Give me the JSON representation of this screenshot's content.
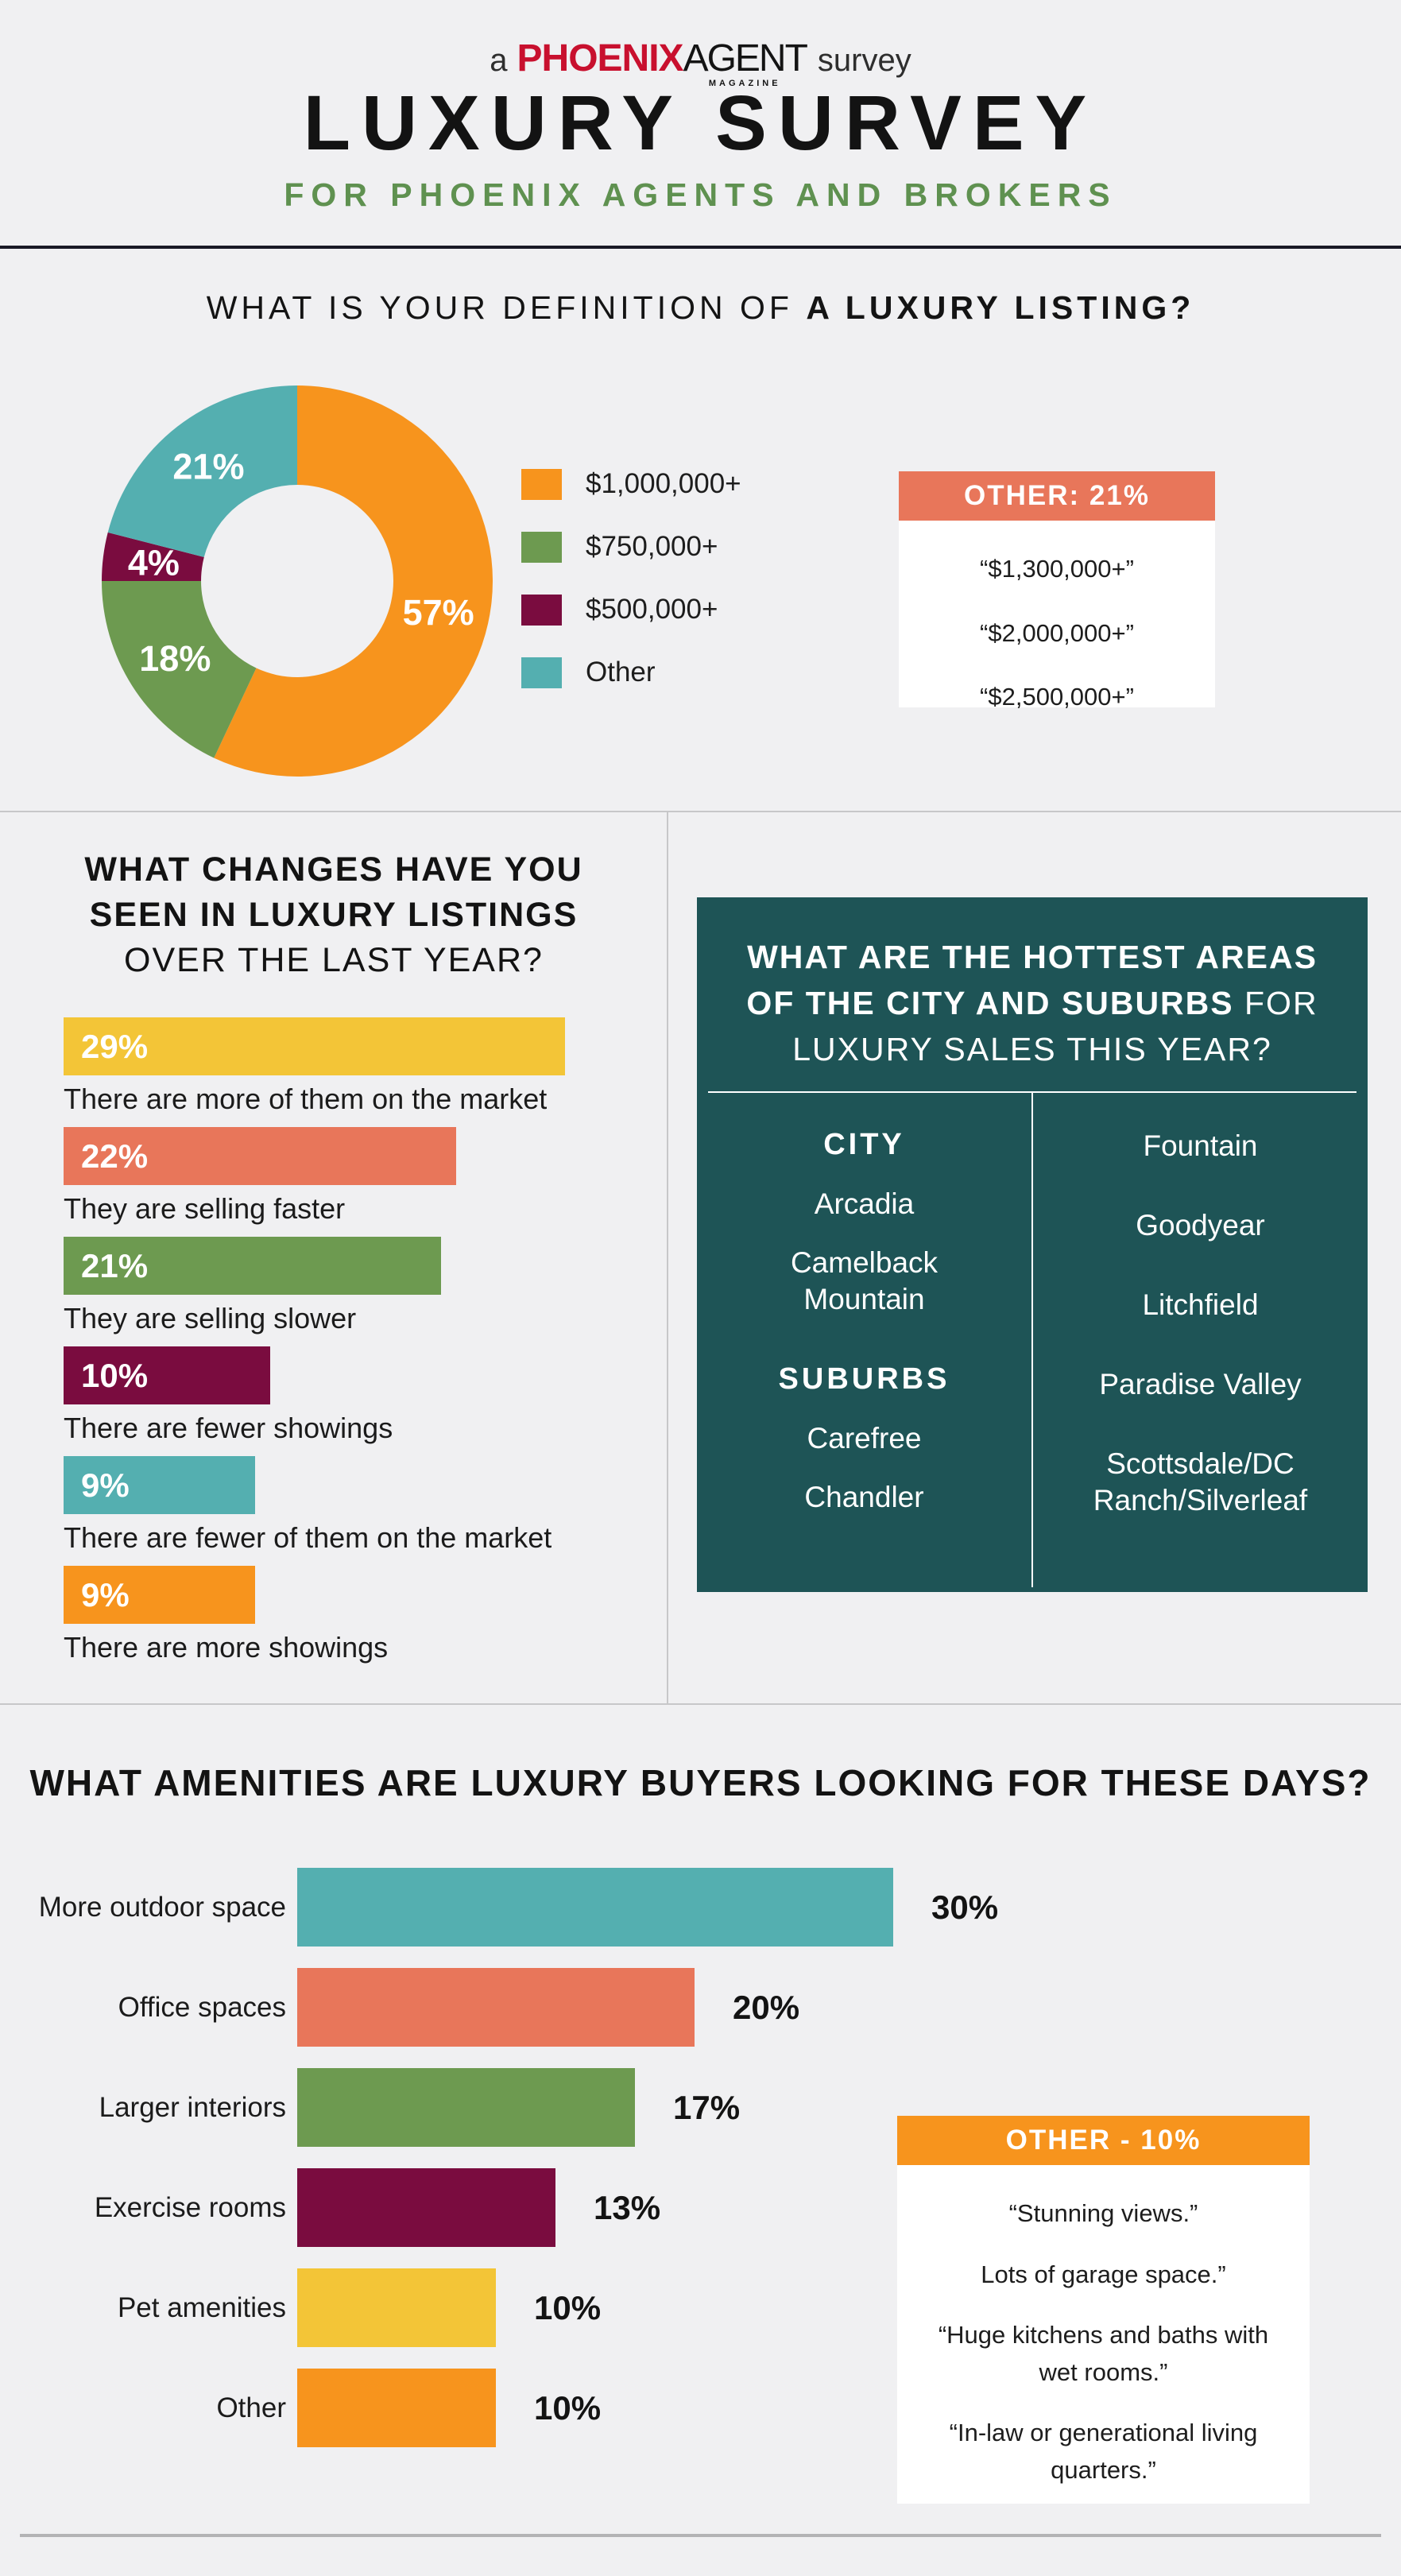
{
  "palette": {
    "orange": "#F7941D",
    "yellow": "#F3C537",
    "salmon": "#E8765A",
    "green": "#6D9A50",
    "maroon": "#7A0C3F",
    "teal": "#54AFB0",
    "dark_teal": "#1E5456",
    "brand_red": "#C8102E",
    "subtitle_green": "#5F9150",
    "background": "#F0F0F2"
  },
  "header": {
    "pretitle": {
      "a": "a",
      "phoenix": "PHOENIX",
      "agent": "AGENT",
      "magazine": "MAGAZINE",
      "survey": "survey"
    },
    "title": "LUXURY SURVEY",
    "subtitle": "FOR PHOENIX AGENTS AND BROKERS"
  },
  "definition_section": {
    "heading_regular": "WHAT IS YOUR DEFINITION OF ",
    "heading_bold": "A LUXURY LISTING?",
    "other_box": {
      "title": "OTHER: 21%",
      "quotes": [
        "“$1,300,000+”",
        "“$2,000,000+”",
        "“$2,500,000+”"
      ]
    }
  },
  "changes_section": {
    "heading_line1": "WHAT CHANGES HAVE YOU",
    "heading_line2": "SEEN IN LUXURY LISTINGS",
    "heading_line3": "OVER THE LAST YEAR?"
  },
  "areas_section": {
    "heading_line1_bold": "WHAT ARE THE HOTTEST AREAS",
    "heading_line2_bold": "OF THE CITY AND SUBURBS",
    "heading_line2_regular": " FOR",
    "heading_line3_regular": "LUXURY SALES THIS YEAR?",
    "city_title": "CITY",
    "city_items": [
      "Arcadia",
      "Camelback Mountain"
    ],
    "suburbs_title": "SUBURBS",
    "suburbs_items": [
      "Carefree",
      "Chandler"
    ],
    "right_items": [
      "Fountain",
      "Goodyear",
      "Litchfield",
      "Paradise Valley",
      "Scottsdale/DC Ranch/Silverleaf"
    ]
  },
  "amenities_section": {
    "heading": "WHAT AMENITIES ARE LUXURY BUYERS LOOKING FOR THESE DAYS?",
    "other_box": {
      "title": "OTHER - 10%",
      "quotes": [
        "“Stunning views.”",
        "Lots of garage space.”",
        "“Huge kitchens and baths with  wet rooms.”",
        "“In-law or generational living quarters.”"
      ]
    }
  },
  "chart_data": [
    {
      "id": "definition_donut",
      "type": "pie",
      "subtype": "donut",
      "title": "WHAT IS YOUR DEFINITION OF A LUXURY LISTING?",
      "labels": [
        "$1,000,000+",
        "$750,000+",
        "$500,000+",
        "Other"
      ],
      "values": [
        57,
        18,
        4,
        21
      ],
      "unit": "%",
      "colors": [
        "#F7941D",
        "#6D9A50",
        "#7A0C3F",
        "#54AFB0"
      ],
      "start_angle_deg": 0,
      "direction": "clockwise",
      "legend_position": "right",
      "value_labels": "inside-slices"
    },
    {
      "id": "changes_bars",
      "type": "bar",
      "orientation": "horizontal",
      "title": "WHAT CHANGES HAVE YOU SEEN IN LUXURY LISTINGS OVER THE LAST YEAR?",
      "categories": [
        "There are more of them on the market",
        "They are selling faster",
        "They are selling slower",
        "There are fewer showings",
        "There are fewer of them on the market",
        "There are more showings"
      ],
      "values": [
        29,
        22,
        21,
        10,
        9,
        9
      ],
      "unit": "%",
      "colors": [
        "#F3C537",
        "#E8765A",
        "#6D9A50",
        "#7A0C3F",
        "#54AFB0",
        "#F7941D"
      ],
      "value_label_position": "inside-start",
      "category_label_position": "below-bar",
      "grid": false
    },
    {
      "id": "amenities_bars",
      "type": "bar",
      "orientation": "horizontal",
      "title": "WHAT AMENITIES ARE LUXURY BUYERS LOOKING FOR THESE DAYS?",
      "categories": [
        "More outdoor space",
        "Office spaces",
        "Larger interiors",
        "Exercise rooms",
        "Pet amenities",
        "Other"
      ],
      "values": [
        30,
        20,
        17,
        13,
        10,
        10
      ],
      "unit": "%",
      "colors": [
        "#54AFB0",
        "#E8765A",
        "#6D9A50",
        "#7A0C3F",
        "#F3C537",
        "#F7941D"
      ],
      "value_label_position": "right-of-bar",
      "category_label_position": "left-of-bar",
      "grid": false
    }
  ]
}
